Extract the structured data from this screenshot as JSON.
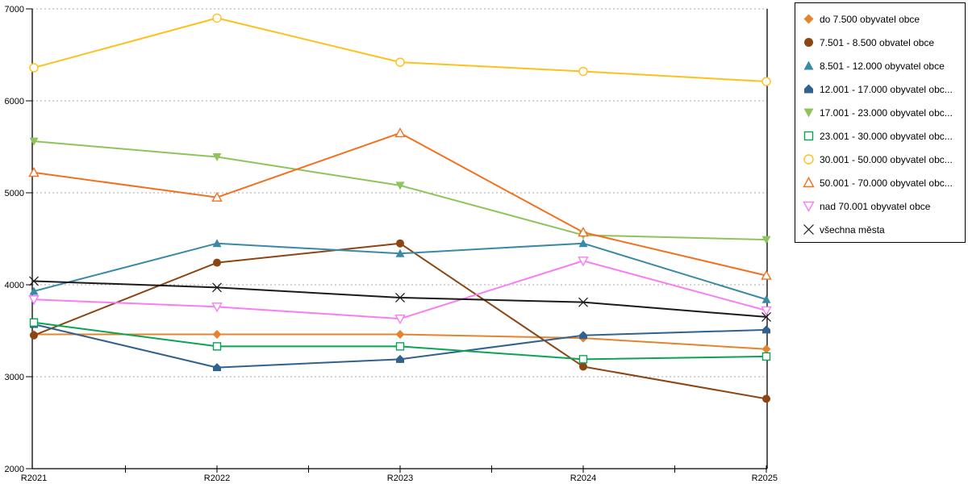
{
  "chart_data": {
    "type": "line",
    "categories": [
      "R2021",
      "R2022",
      "R2023",
      "R2024",
      "R2025"
    ],
    "series": [
      {
        "label": "do 7.500 obyvatel obce",
        "marker": "diamond",
        "color": "#E8832D",
        "values": [
          3460,
          3460,
          3460,
          3420,
          3300
        ]
      },
      {
        "label": "7.501 - 8.500 obvatel obce",
        "marker": "circle",
        "color": "#8C4613",
        "values": [
          3450,
          4240,
          4450,
          3110,
          2760
        ]
      },
      {
        "label": "8.501 - 12.000 obyvatel obce",
        "marker": "triangle-up",
        "color": "#3A89A5",
        "values": [
          3930,
          4450,
          4340,
          4450,
          3840
        ]
      },
      {
        "label": "12.001 - 17.000 obyvatel obc...",
        "marker": "pentagon",
        "color": "#31618E",
        "values": [
          3570,
          3100,
          3190,
          3450,
          3510
        ]
      },
      {
        "label": "17.001 - 23.000 obyvatel obc...",
        "marker": "triangle-down",
        "color": "#8EC45A",
        "values": [
          5560,
          5390,
          5080,
          4540,
          4490
        ]
      },
      {
        "label": "23.001 - 30.000 obyvatel obc...",
        "marker": "square-open",
        "color": "#0AA455",
        "values": [
          3590,
          3330,
          3330,
          3190,
          3220
        ]
      },
      {
        "label": "30.001 - 50.000 obyvatel obc...",
        "marker": "circle-open",
        "color": "#FCC11C",
        "values": [
          6360,
          6900,
          6420,
          6320,
          6210
        ]
      },
      {
        "label": "50.001 - 70.000 obyvatel obc...",
        "marker": "triangle-up-open",
        "color": "#F3701F",
        "values": [
          5220,
          4950,
          5650,
          4570,
          4100
        ]
      },
      {
        "label": "nad 70.001 obyvatel obce",
        "marker": "triangle-down-open",
        "color": "#F97DF2",
        "values": [
          3840,
          3760,
          3630,
          4260,
          3720
        ]
      },
      {
        "label": "všechna města",
        "marker": "x",
        "color": "#1A1A1A",
        "values": [
          4040,
          3970,
          3860,
          3810,
          3650
        ]
      }
    ],
    "ylim": [
      2000,
      7000
    ],
    "ytick_step": 1000,
    "ytick_labels": [
      "2000",
      "3000",
      "4000",
      "5000",
      "6000",
      "7000"
    ],
    "grid": "horizontal-dotted",
    "grid_color": "#AAAAAA",
    "axis_color": "#000000",
    "legend_position": "right",
    "title": "",
    "xlabel": "",
    "ylabel": ""
  }
}
